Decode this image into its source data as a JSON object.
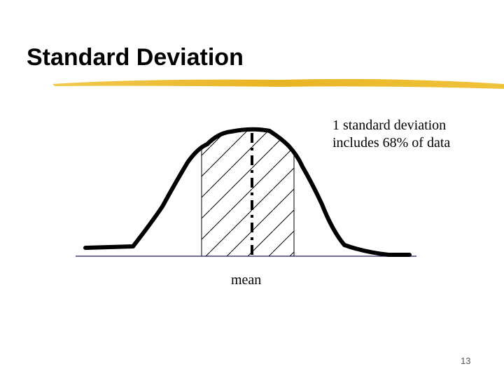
{
  "slide": {
    "title": "Standard Deviation",
    "annotation": [
      "1 standard deviation",
      "includes 68% of data"
    ],
    "label": "mean",
    "page_number": "13"
  }
}
